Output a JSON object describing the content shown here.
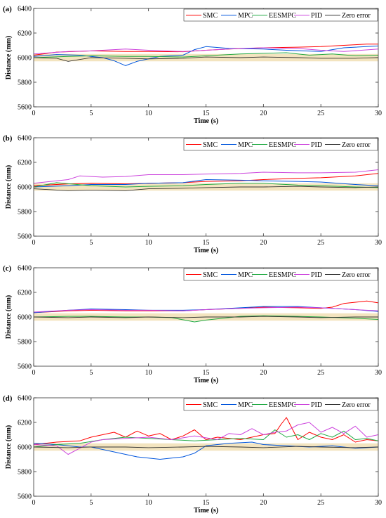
{
  "chart_data": [
    {
      "type": "line",
      "panel_label": "(a)",
      "xlabel": "Time (s)",
      "ylabel": "Distance (mm)",
      "xlim": [
        0,
        30
      ],
      "ylim": [
        5600,
        6400
      ],
      "x_ticks": [
        0,
        5,
        10,
        15,
        20,
        25,
        30
      ],
      "y_ticks": [
        5600,
        5800,
        6000,
        6200,
        6400
      ],
      "grid": false,
      "legend_position": "top-right",
      "tolerance_band": [
        5970,
        6030
      ],
      "series": [
        {
          "name": "SMC",
          "color": "#ff0000",
          "x": [
            0,
            2,
            5,
            8,
            10,
            13,
            15,
            17,
            20,
            23,
            25,
            27,
            29,
            30
          ],
          "y": [
            6020,
            6045,
            6055,
            6050,
            6050,
            6048,
            6060,
            6070,
            6080,
            6085,
            6090,
            6100,
            6110,
            6110
          ]
        },
        {
          "name": "MPC",
          "color": "#0055dd",
          "x": [
            0,
            2,
            4,
            6,
            7,
            8,
            9,
            11,
            13,
            14,
            15,
            17,
            20,
            22,
            25,
            27,
            30
          ],
          "y": [
            6010,
            6025,
            6020,
            6000,
            5975,
            5935,
            5970,
            6010,
            6020,
            6065,
            6090,
            6075,
            6070,
            6060,
            6050,
            6080,
            6095
          ]
        },
        {
          "name": "EESMPC",
          "color": "#22aa44",
          "x": [
            0,
            3,
            5,
            8,
            10,
            13,
            15,
            18,
            20,
            22,
            24,
            26,
            28,
            30
          ],
          "y": [
            6000,
            6010,
            6015,
            6010,
            6010,
            6005,
            6015,
            6030,
            6035,
            6040,
            6020,
            6030,
            6015,
            6020
          ]
        },
        {
          "name": "PID",
          "color": "#cc44dd",
          "x": [
            0,
            3,
            5,
            8,
            10,
            13,
            15,
            18,
            20,
            23,
            25,
            27,
            30
          ],
          "y": [
            6030,
            6050,
            6055,
            6070,
            6060,
            6050,
            6060,
            6075,
            6080,
            6075,
            6060,
            6050,
            6070
          ]
        },
        {
          "name": "Zero error",
          "color": "#333333",
          "x": [
            0,
            2,
            3,
            5,
            8,
            10,
            13,
            15,
            18,
            20,
            23,
            25,
            28,
            30
          ],
          "y": [
            6000,
            5995,
            5970,
            6000,
            5995,
            5990,
            5995,
            6005,
            6000,
            6005,
            6000,
            5995,
            5995,
            6000
          ]
        }
      ]
    },
    {
      "type": "line",
      "panel_label": "(b)",
      "xlabel": "Time (s)",
      "ylabel": "Distance (mm)",
      "xlim": [
        0,
        30
      ],
      "ylim": [
        5600,
        6400
      ],
      "x_ticks": [
        0,
        5,
        10,
        15,
        20,
        25,
        30
      ],
      "y_ticks": [
        5600,
        5800,
        6000,
        6200,
        6400
      ],
      "grid": false,
      "legend_position": "top-right",
      "tolerance_band": [
        5970,
        6030
      ],
      "series": [
        {
          "name": "SMC",
          "color": "#ff0000",
          "x": [
            0,
            3,
            5,
            8,
            10,
            13,
            15,
            18,
            20,
            23,
            25,
            28,
            30
          ],
          "y": [
            6010,
            6025,
            6030,
            6025,
            6030,
            6035,
            6045,
            6050,
            6060,
            6070,
            6075,
            6090,
            6110
          ]
        },
        {
          "name": "MPC",
          "color": "#0055dd",
          "x": [
            0,
            3,
            5,
            8,
            10,
            13,
            15,
            18,
            20,
            23,
            25,
            28,
            30
          ],
          "y": [
            6000,
            6010,
            6020,
            6020,
            6030,
            6035,
            6060,
            6055,
            6050,
            6045,
            6040,
            6020,
            6010
          ]
        },
        {
          "name": "EESMPC",
          "color": "#22aa44",
          "x": [
            0,
            2,
            5,
            8,
            10,
            13,
            15,
            18,
            20,
            23,
            25,
            28,
            30
          ],
          "y": [
            6000,
            6035,
            6010,
            6000,
            6005,
            6010,
            6020,
            6030,
            6030,
            6015,
            6010,
            6000,
            5995
          ]
        },
        {
          "name": "PID",
          "color": "#cc44dd",
          "x": [
            0,
            3,
            4,
            6,
            8,
            10,
            13,
            15,
            18,
            20,
            23,
            25,
            28,
            30
          ],
          "y": [
            6030,
            6060,
            6090,
            6080,
            6085,
            6100,
            6100,
            6105,
            6110,
            6120,
            6115,
            6115,
            6120,
            6140
          ]
        },
        {
          "name": "Zero error",
          "color": "#333333",
          "x": [
            0,
            3,
            5,
            8,
            10,
            13,
            15,
            18,
            20,
            23,
            25,
            28,
            30
          ],
          "y": [
            5985,
            5970,
            5975,
            5970,
            5985,
            5990,
            5995,
            6000,
            6000,
            6005,
            6000,
            5995,
            6000
          ]
        }
      ]
    },
    {
      "type": "line",
      "panel_label": "(c)",
      "xlabel": "Time (s)",
      "ylabel": "Distance (mm)",
      "xlim": [
        0,
        30
      ],
      "ylim": [
        5600,
        6400
      ],
      "x_ticks": [
        0,
        5,
        10,
        15,
        20,
        25,
        30
      ],
      "y_ticks": [
        5600,
        5800,
        6000,
        6200,
        6400
      ],
      "grid": false,
      "legend_position": "top-right",
      "tolerance_band": [
        5970,
        6030
      ],
      "series": [
        {
          "name": "SMC",
          "color": "#ff0000",
          "x": [
            0,
            3,
            5,
            8,
            10,
            13,
            15,
            18,
            20,
            23,
            25,
            26,
            27,
            29,
            30
          ],
          "y": [
            6035,
            6050,
            6055,
            6050,
            6050,
            6050,
            6060,
            6070,
            6080,
            6075,
            6070,
            6080,
            6110,
            6130,
            6115
          ]
        },
        {
          "name": "MPC",
          "color": "#0055dd",
          "x": [
            0,
            3,
            5,
            8,
            10,
            13,
            15,
            18,
            20,
            23,
            25,
            28,
            30
          ],
          "y": [
            6035,
            6055,
            6065,
            6060,
            6055,
            6055,
            6060,
            6075,
            6085,
            6085,
            6075,
            6060,
            6045
          ]
        },
        {
          "name": "EESMPC",
          "color": "#22aa44",
          "x": [
            0,
            3,
            5,
            8,
            10,
            12,
            14,
            15,
            18,
            20,
            23,
            25,
            28,
            30
          ],
          "y": [
            6000,
            6005,
            6005,
            6000,
            6000,
            5995,
            5960,
            5975,
            6005,
            6010,
            6005,
            6000,
            5990,
            5980
          ]
        },
        {
          "name": "PID",
          "color": "#cc44dd",
          "x": [
            0,
            3,
            5,
            8,
            10,
            13,
            15,
            18,
            20,
            23,
            25,
            28,
            30
          ],
          "y": [
            6040,
            6055,
            6060,
            6055,
            6055,
            6050,
            6060,
            6070,
            6075,
            6080,
            6075,
            6060,
            6050
          ]
        },
        {
          "name": "Zero error",
          "color": "#333333",
          "x": [
            0,
            3,
            5,
            8,
            10,
            13,
            15,
            18,
            20,
            23,
            25,
            28,
            30
          ],
          "y": [
            6000,
            5995,
            6000,
            5995,
            6000,
            5995,
            6000,
            6000,
            6005,
            6000,
            5995,
            6000,
            6000
          ]
        }
      ]
    },
    {
      "type": "line",
      "panel_label": "(d)",
      "xlabel": "Time (s)",
      "ylabel": "Distance (mm)",
      "xlim": [
        0,
        30
      ],
      "ylim": [
        5600,
        6400
      ],
      "x_ticks": [
        0,
        5,
        10,
        15,
        20,
        25,
        30
      ],
      "y_ticks": [
        5600,
        5800,
        6000,
        6200,
        6400
      ],
      "grid": false,
      "legend_position": "top-right",
      "tolerance_band": [
        5970,
        6030
      ],
      "series": [
        {
          "name": "SMC",
          "color": "#ff0000",
          "x": [
            0,
            2,
            4,
            5,
            6,
            7,
            8,
            9,
            10,
            11,
            12,
            13,
            14,
            15,
            16,
            18,
            20,
            21,
            21.5,
            22,
            23,
            24,
            25,
            26,
            27,
            28,
            29,
            30
          ],
          "y": [
            6020,
            6040,
            6050,
            6080,
            6100,
            6120,
            6080,
            6130,
            6090,
            6110,
            6060,
            6090,
            6140,
            6060,
            6080,
            6060,
            6100,
            6110,
            6180,
            6240,
            6060,
            6120,
            6080,
            6060,
            6100,
            6040,
            6060,
            6050
          ]
        },
        {
          "name": "MPC",
          "color": "#0055dd",
          "x": [
            0,
            2,
            4,
            5,
            6,
            7,
            8,
            9,
            10,
            11,
            12,
            13,
            14,
            15,
            17,
            19,
            20,
            22,
            24,
            26,
            28,
            30
          ],
          "y": [
            6030,
            6020,
            6000,
            6000,
            5980,
            5960,
            5940,
            5920,
            5910,
            5900,
            5910,
            5920,
            5950,
            6010,
            6030,
            6040,
            6020,
            6010,
            6000,
            6010,
            5990,
            6000
          ]
        },
        {
          "name": "EESMPC",
          "color": "#22aa44",
          "x": [
            0,
            2,
            4,
            6,
            8,
            10,
            12,
            14,
            16,
            18,
            20,
            21,
            22,
            23,
            24,
            25,
            26,
            27,
            28,
            29,
            30
          ],
          "y": [
            6000,
            6020,
            6030,
            6060,
            6080,
            6070,
            6060,
            6050,
            6060,
            6070,
            6060,
            6140,
            6080,
            6100,
            6060,
            6110,
            6080,
            6130,
            6060,
            6070,
            6050
          ]
        },
        {
          "name": "PID",
          "color": "#cc44dd",
          "x": [
            0,
            2,
            3,
            4,
            5,
            6,
            8,
            10,
            12,
            14,
            16,
            17,
            18,
            19,
            20,
            21,
            22,
            23,
            24,
            25,
            26,
            27,
            28,
            29,
            30
          ],
          "y": [
            6020,
            6010,
            5940,
            5990,
            6040,
            6060,
            6070,
            6080,
            6060,
            6090,
            6060,
            6110,
            6100,
            6150,
            6100,
            6120,
            6130,
            6180,
            6200,
            6120,
            6160,
            6110,
            6170,
            6080,
            6100
          ]
        },
        {
          "name": "Zero error",
          "color": "#333333",
          "x": [
            0,
            3,
            5,
            8,
            10,
            13,
            15,
            18,
            20,
            23,
            25,
            28,
            30
          ],
          "y": [
            6000,
            5995,
            6000,
            6000,
            5995,
            6000,
            6005,
            6000,
            5995,
            6005,
            6000,
            5995,
            6000
          ]
        }
      ]
    }
  ]
}
